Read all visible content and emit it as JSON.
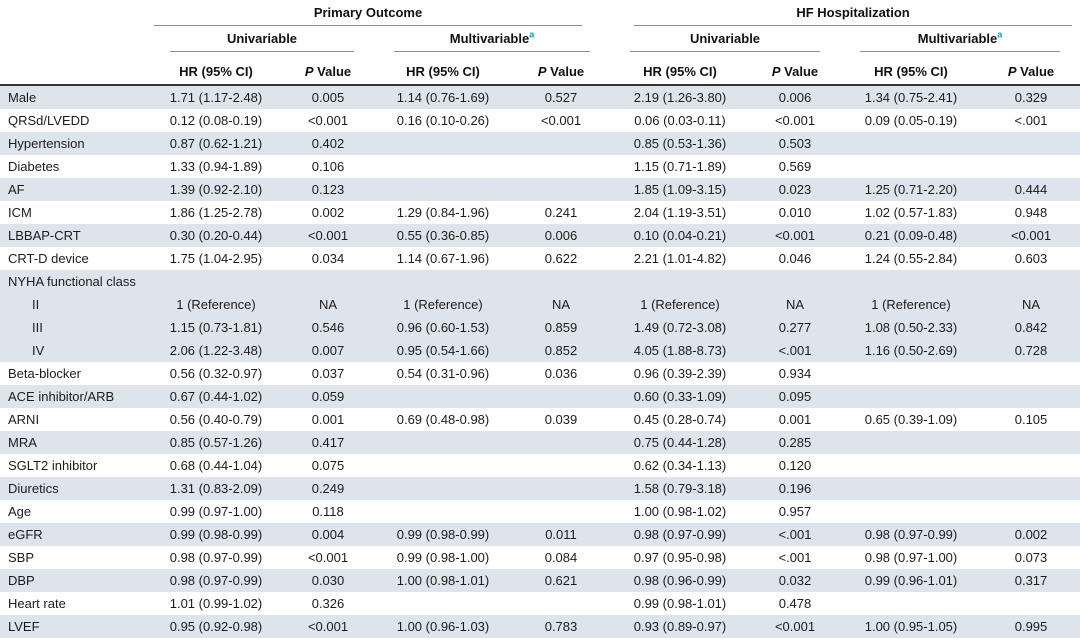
{
  "table": {
    "columns": {
      "group_primary": "Primary Outcome",
      "group_hf": "HF Hospitalization",
      "sub_univariable": "Univariable",
      "sub_multivariable": "Multivariable",
      "multivariable_superscript": "a",
      "hr_header": "HR (95% CI)",
      "p_header_italic": "P",
      "p_header_rest": "Value"
    },
    "rows": [
      {
        "label": "Male",
        "indent": 0,
        "cells": [
          "1.71 (1.17-2.48)",
          "0.005",
          "1.14 (0.76-1.69)",
          "0.527",
          "2.19 (1.26-3.80)",
          "0.006",
          "1.34 (0.75-2.41)",
          "0.329"
        ]
      },
      {
        "label": "QRSd/LVEDD",
        "indent": 0,
        "cells": [
          "0.12 (0.08-0.19)",
          "<0.001",
          "0.16 (0.10-0.26)",
          "<0.001",
          "0.06 (0.03-0.11)",
          "<0.001",
          "0.09 (0.05-0.19)",
          "<.001"
        ]
      },
      {
        "label": "Hypertension",
        "indent": 0,
        "cells": [
          "0.87 (0.62-1.21)",
          "0.402",
          "",
          "",
          "0.85 (0.53-1.36)",
          "0.503",
          "",
          ""
        ]
      },
      {
        "label": "Diabetes",
        "indent": 0,
        "cells": [
          "1.33 (0.94-1.89)",
          "0.106",
          "",
          "",
          "1.15 (0.71-1.89)",
          "0.569",
          "",
          ""
        ]
      },
      {
        "label": "AF",
        "indent": 0,
        "cells": [
          "1.39 (0.92-2.10)",
          "0.123",
          "",
          "",
          "1.85 (1.09-3.15)",
          "0.023",
          "1.25 (0.71-2.20)",
          "0.444"
        ]
      },
      {
        "label": "ICM",
        "indent": 0,
        "cells": [
          "1.86 (1.25-2.78)",
          "0.002",
          "1.29 (0.84-1.96)",
          "0.241",
          "2.04 (1.19-3.51)",
          "0.010",
          "1.02 (0.57-1.83)",
          "0.948"
        ]
      },
      {
        "label": "LBBAP-CRT",
        "indent": 0,
        "cells": [
          "0.30 (0.20-0.44)",
          "<0.001",
          "0.55 (0.36-0.85)",
          "0.006",
          "0.10 (0.04-0.21)",
          "<0.001",
          "0.21 (0.09-0.48)",
          "<0.001"
        ]
      },
      {
        "label": "CRT-D device",
        "indent": 0,
        "cells": [
          "1.75 (1.04-2.95)",
          "0.034",
          "1.14 (0.67-1.96)",
          "0.622",
          "2.21 (1.01-4.82)",
          "0.046",
          "1.24 (0.55-2.84)",
          "0.603"
        ]
      },
      {
        "label": "NYHA functional class",
        "indent": 0,
        "cells": [
          "",
          "",
          "",
          "",
          "",
          "",
          "",
          ""
        ]
      },
      {
        "label": "II",
        "indent": 1,
        "cells": [
          "1 (Reference)",
          "NA",
          "1 (Reference)",
          "NA",
          "1 (Reference)",
          "NA",
          "1 (Reference)",
          "NA"
        ]
      },
      {
        "label": "III",
        "indent": 1,
        "cells": [
          "1.15 (0.73-1.81)",
          "0.546",
          "0.96 (0.60-1.53)",
          "0.859",
          "1.49 (0.72-3.08)",
          "0.277",
          "1.08 (0.50-2.33)",
          "0.842"
        ]
      },
      {
        "label": "IV",
        "indent": 1,
        "cells": [
          "2.06 (1.22-3.48)",
          "0.007",
          "0.95 (0.54-1.66)",
          "0.852",
          "4.05 (1.88-8.73)",
          "<.001",
          "1.16 (0.50-2.69)",
          "0.728"
        ]
      },
      {
        "label": "Beta-blocker",
        "indent": 0,
        "cells": [
          "0.56 (0.32-0.97)",
          "0.037",
          "0.54 (0.31-0.96)",
          "0.036",
          "0.96 (0.39-2.39)",
          "0.934",
          "",
          ""
        ]
      },
      {
        "label": "ACE inhibitor/ARB",
        "indent": 0,
        "cells": [
          "0.67 (0.44-1.02)",
          "0.059",
          "",
          "",
          "0.60 (0.33-1.09)",
          "0.095",
          "",
          ""
        ]
      },
      {
        "label": "ARNI",
        "indent": 0,
        "cells": [
          "0.56 (0.40-0.79)",
          "0.001",
          "0.69 (0.48-0.98)",
          "0.039",
          "0.45 (0.28-0.74)",
          "0.001",
          "0.65 (0.39-1.09)",
          "0.105"
        ]
      },
      {
        "label": "MRA",
        "indent": 0,
        "cells": [
          "0.85 (0.57-1.26)",
          "0.417",
          "",
          "",
          "0.75 (0.44-1.28)",
          "0.285",
          "",
          ""
        ]
      },
      {
        "label": "SGLT2 inhibitor",
        "indent": 0,
        "cells": [
          "0.68 (0.44-1.04)",
          "0.075",
          "",
          "",
          "0.62 (0.34-1.13)",
          "0.120",
          "",
          ""
        ]
      },
      {
        "label": "Diuretics",
        "indent": 0,
        "cells": [
          "1.31 (0.83-2.09)",
          "0.249",
          "",
          "",
          "1.58 (0.79-3.18)",
          "0.196",
          "",
          ""
        ]
      },
      {
        "label": "Age",
        "indent": 0,
        "cells": [
          "0.99 (0.97-1.00)",
          "0.118",
          "",
          "",
          "1.00 (0.98-1.02)",
          "0.957",
          "",
          ""
        ]
      },
      {
        "label": "eGFR",
        "indent": 0,
        "cells": [
          "0.99 (0.98-0.99)",
          "0.004",
          "0.99 (0.98-0.99)",
          "0.011",
          "0.98 (0.97-0.99)",
          "<.001",
          "0.98 (0.97-0.99)",
          "0.002"
        ]
      },
      {
        "label": "SBP",
        "indent": 0,
        "cells": [
          "0.98 (0.97-0.99)",
          "<0.001",
          "0.99 (0.98-1.00)",
          "0.084",
          "0.97 (0.95-0.98)",
          "<.001",
          "0.98 (0.97-1.00)",
          "0.073"
        ]
      },
      {
        "label": "DBP",
        "indent": 0,
        "cells": [
          "0.98 (0.97-0.99)",
          "0.030",
          "1.00 (0.98-1.01)",
          "0.621",
          "0.98 (0.96-0.99)",
          "0.032",
          "0.99 (0.96-1.01)",
          "0.317"
        ]
      },
      {
        "label": "Heart rate",
        "indent": 0,
        "cells": [
          "1.01 (0.99-1.02)",
          "0.326",
          "",
          "",
          "0.99 (0.98-1.01)",
          "0.478",
          "",
          ""
        ]
      },
      {
        "label": "LVEF",
        "indent": 0,
        "cells": [
          "0.95 (0.92-0.98)",
          "<0.001",
          "1.00 (0.96-1.03)",
          "0.783",
          "0.93 (0.89-0.97)",
          "<0.001",
          "1.00 (0.95-1.05)",
          "0.995"
        ]
      }
    ],
    "colors": {
      "row_shade": "#dde4ec",
      "superscript_teal": "#00a0a8",
      "header_rule_dark": "#333333",
      "header_rule_light": "#8c8c8c"
    }
  }
}
